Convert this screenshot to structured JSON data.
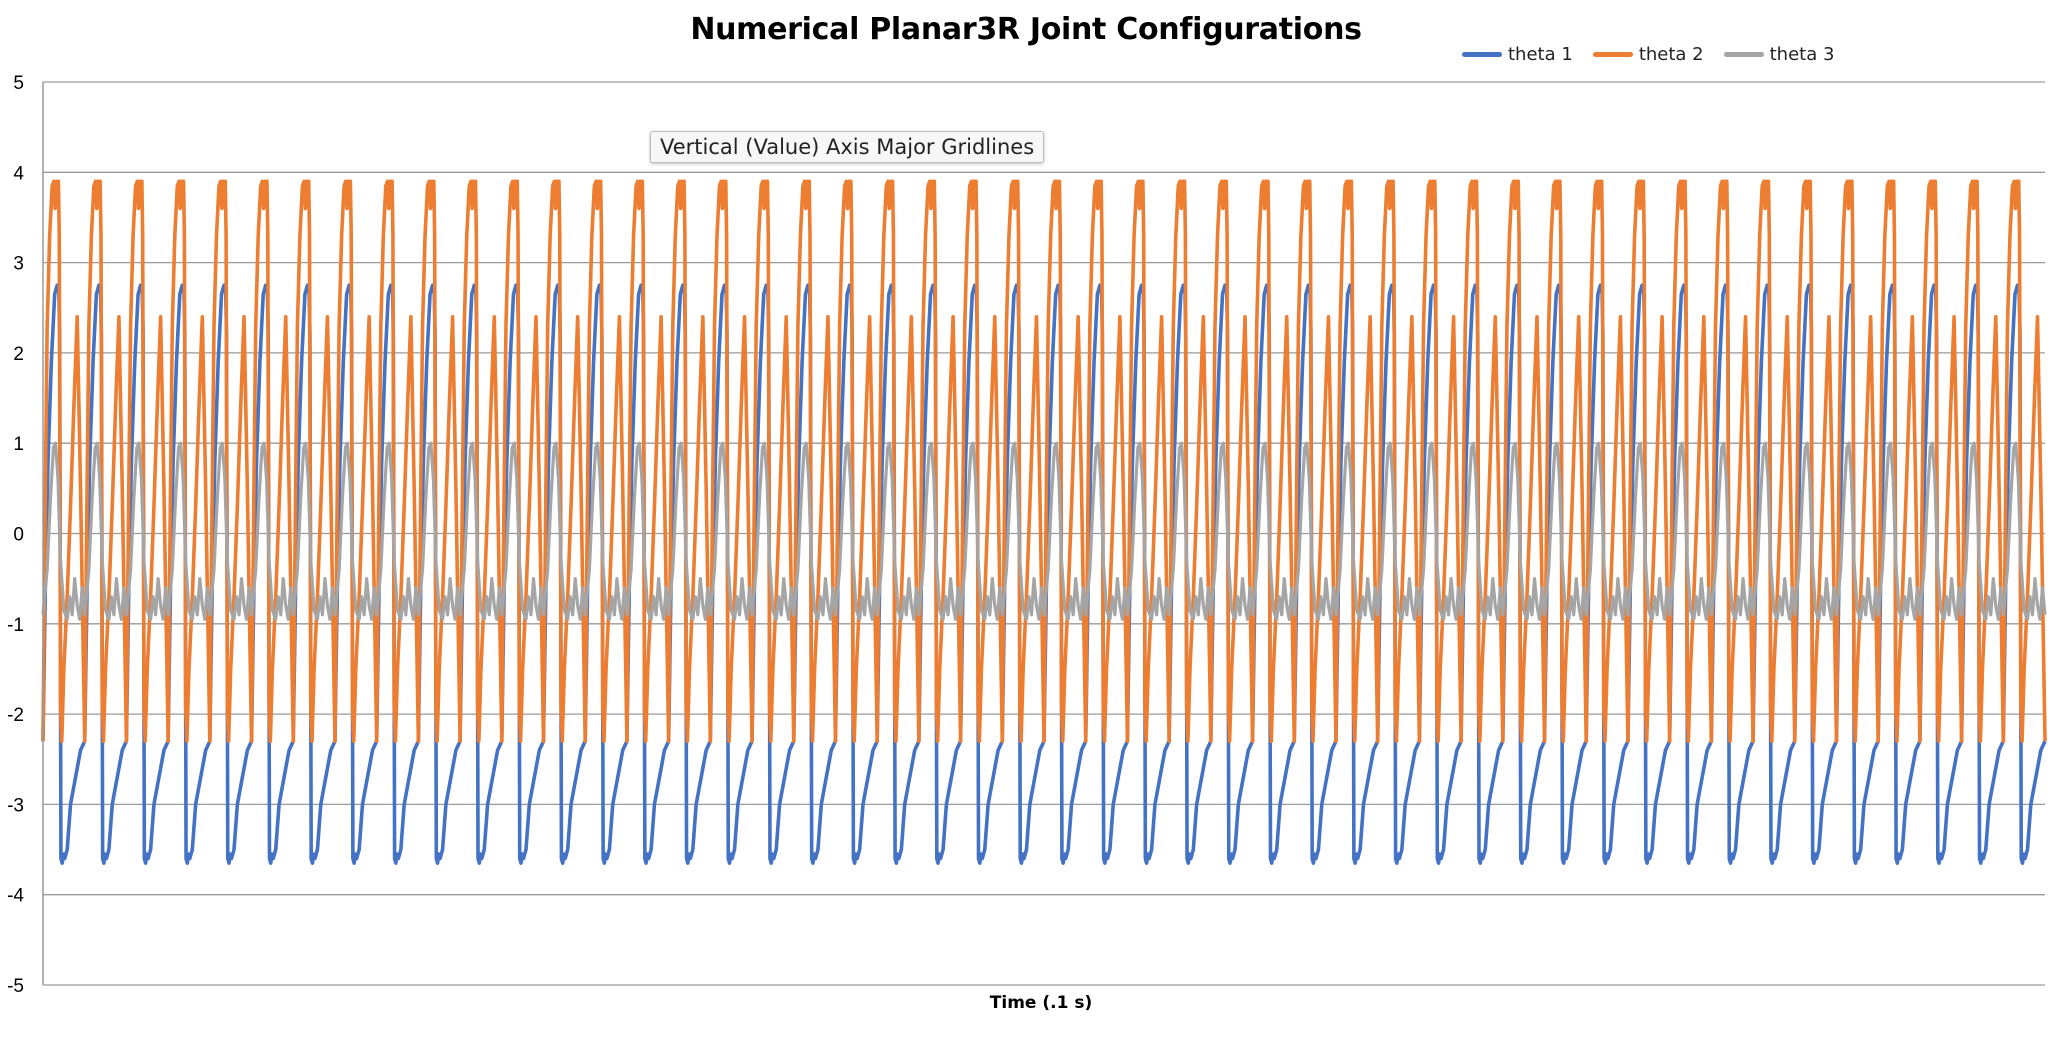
{
  "chart_data": {
    "type": "line",
    "title": "Numerical Planar3R Joint Configurations",
    "xlabel": "Time (.1 s)",
    "ylabel": "",
    "ylim": [
      -5,
      5
    ],
    "yticks": [
      "5",
      "4",
      "3",
      "2",
      "1",
      "0",
      "-1",
      "-2",
      "-3",
      "-4",
      "-5"
    ],
    "grid": "horizontal major gridlines",
    "legend_position": "top-right",
    "x_tick_labels_shown": false,
    "cycles": 48,
    "series": [
      {
        "name": "theta 1",
        "color": "#4472C4",
        "period_profile_x": [
          0,
          0.06,
          0.12,
          0.2,
          0.28,
          0.34,
          0.38,
          0.4,
          0.43,
          0.46,
          0.49,
          0.52,
          0.58,
          0.66,
          0.74,
          0.82,
          0.9,
          1.0
        ],
        "period_profile_y": [
          -2.3,
          -0.5,
          0.8,
          1.9,
          2.65,
          2.75,
          2.7,
          2.2,
          -3.6,
          -3.65,
          -3.55,
          -3.6,
          -3.5,
          -3.0,
          -2.8,
          -2.6,
          -2.4,
          -2.3
        ],
        "min": -3.65,
        "max": 2.75
      },
      {
        "name": "theta 2",
        "color": "#ED7D31",
        "period_profile_x": [
          0,
          0.05,
          0.1,
          0.16,
          0.22,
          0.26,
          0.29,
          0.32,
          0.35,
          0.37,
          0.39,
          0.42,
          0.45,
          0.5,
          0.58,
          0.66,
          0.74,
          0.82,
          0.9,
          1.0
        ],
        "period_profile_y": [
          -2.3,
          0.2,
          2.3,
          3.3,
          3.85,
          3.9,
          3.6,
          3.9,
          3.75,
          3.9,
          3.3,
          -1.9,
          -2.3,
          -1.5,
          -0.7,
          0.3,
          1.4,
          2.4,
          0.5,
          -2.3
        ],
        "min": -2.35,
        "max": 3.92
      },
      {
        "name": "theta 3",
        "color": "#A5A5A5",
        "period_profile_x": [
          0,
          0.1,
          0.18,
          0.25,
          0.3,
          0.36,
          0.42,
          0.5,
          0.58,
          0.64,
          0.7,
          0.76,
          0.82,
          0.88,
          0.94,
          1.0
        ],
        "period_profile_y": [
          -0.9,
          -0.4,
          0.4,
          0.95,
          1.0,
          0.6,
          -0.3,
          -0.85,
          -0.95,
          -0.7,
          -0.9,
          -0.5,
          -0.8,
          -0.95,
          -0.6,
          -0.9
        ],
        "min": -1.0,
        "max": 1.0
      }
    ]
  },
  "tooltip": {
    "text": "Vertical (Value) Axis Major Gridlines"
  }
}
